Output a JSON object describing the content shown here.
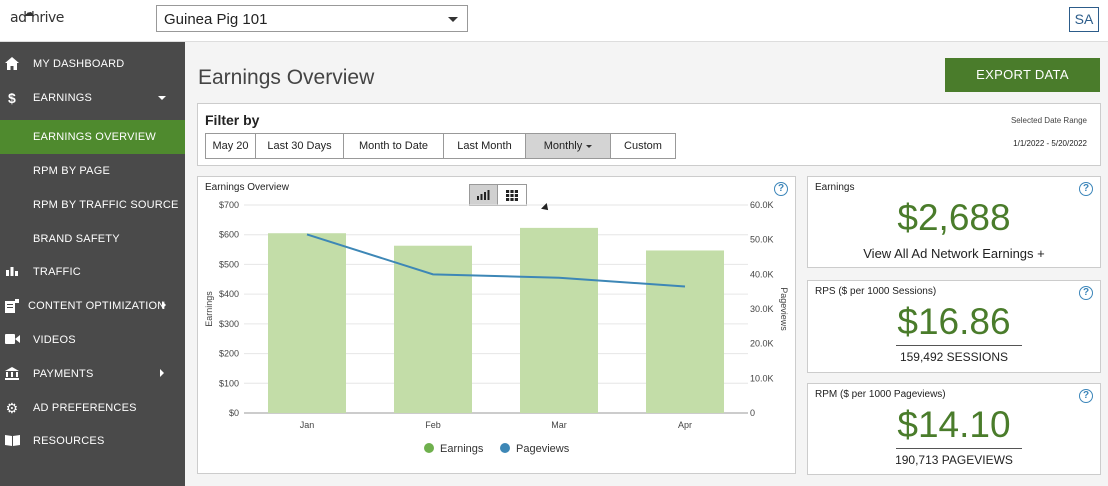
{
  "app": {
    "logo_text_left": "ad",
    "logo_text_right": "hrive"
  },
  "site_selector": {
    "value": "Guinea Pig 101"
  },
  "user": {
    "initials": "SA"
  },
  "sidebar": {
    "items": [
      {
        "label": "MY DASHBOARD",
        "icon": "home-icon",
        "glyph": "⌂"
      },
      {
        "label": "EARNINGS",
        "icon": "dollar-icon",
        "glyph": "$"
      },
      {
        "label": "EARNINGS OVERVIEW",
        "sub": true,
        "active": true
      },
      {
        "label": "RPM BY PAGE",
        "sub": true
      },
      {
        "label": "RPM BY TRAFFIC SOURCE",
        "sub": true
      },
      {
        "label": "BRAND SAFETY",
        "sub": true
      },
      {
        "label": "TRAFFIC",
        "icon": "bar-chart-icon",
        "glyph": "▮"
      },
      {
        "label": "CONTENT OPTIMIZATION",
        "icon": "content-icon",
        "glyph": "▤"
      },
      {
        "label": "VIDEOS",
        "icon": "video-camera-icon",
        "glyph": "■"
      },
      {
        "label": "PAYMENTS",
        "icon": "bank-icon",
        "glyph": "⌂"
      },
      {
        "label": "AD PREFERENCES",
        "icon": "gear-icon",
        "glyph": "⚙"
      },
      {
        "label": "RESOURCES",
        "icon": "book-icon",
        "glyph": "▯"
      }
    ]
  },
  "page": {
    "title": "Earnings Overview",
    "export_label": "EXPORT DATA"
  },
  "filter": {
    "title": "Filter by",
    "buttons": [
      "May 20",
      "Last 30 Days",
      "Month to Date",
      "Last Month",
      "Monthly",
      "Custom"
    ],
    "selected": "Monthly",
    "date_range_label": "Selected Date Range",
    "date_range_value": "1/1/2022 - 5/20/2022"
  },
  "chart_panel": {
    "title": "Earnings Overview",
    "help": "?"
  },
  "chart_data": {
    "type": "bar",
    "title": "Earnings Overview",
    "categories": [
      "Jan",
      "Feb",
      "Mar",
      "Apr"
    ],
    "series": [
      {
        "name": "Earnings",
        "type": "bar",
        "axis": "left",
        "values": [
          605,
          563,
          623,
          547
        ]
      },
      {
        "name": "Pageviews",
        "type": "line",
        "axis": "right",
        "values": [
          51500,
          40000,
          39000,
          36500
        ]
      }
    ],
    "ylabel": "Earnings",
    "ylabel_right": "Pageviews",
    "ylim": [
      0,
      700
    ],
    "ylim_right": [
      0,
      60000
    ],
    "yticks": [
      "$0",
      "$100",
      "$200",
      "$300",
      "$400",
      "$500",
      "$600",
      "$700"
    ],
    "yticks_right": [
      "0",
      "10.0K",
      "20.0K",
      "30.0K",
      "40.0K",
      "50.0K",
      "60.0K"
    ],
    "grid": true,
    "legend_position": "bottom",
    "colors": {
      "Earnings": "#c3dda8",
      "Earnings_legend": "#6fb04d",
      "Pageviews": "#3d87b6"
    }
  },
  "cards": {
    "earnings": {
      "title": "Earnings",
      "value": "$2,688",
      "link": "View All Ad Network Earnings +"
    },
    "rps": {
      "title": "RPS ($ per 1000 Sessions)",
      "value": "$16.86",
      "sub": "159,492 SESSIONS"
    },
    "rpm": {
      "title": "RPM ($ per 1000 Pageviews)",
      "value": "$14.10",
      "sub": "190,713 PAGEVIEWS"
    }
  },
  "colors": {
    "accent": "#4f8a2e",
    "sidebar": "#4a4a4a",
    "help": "#3b85b9"
  }
}
